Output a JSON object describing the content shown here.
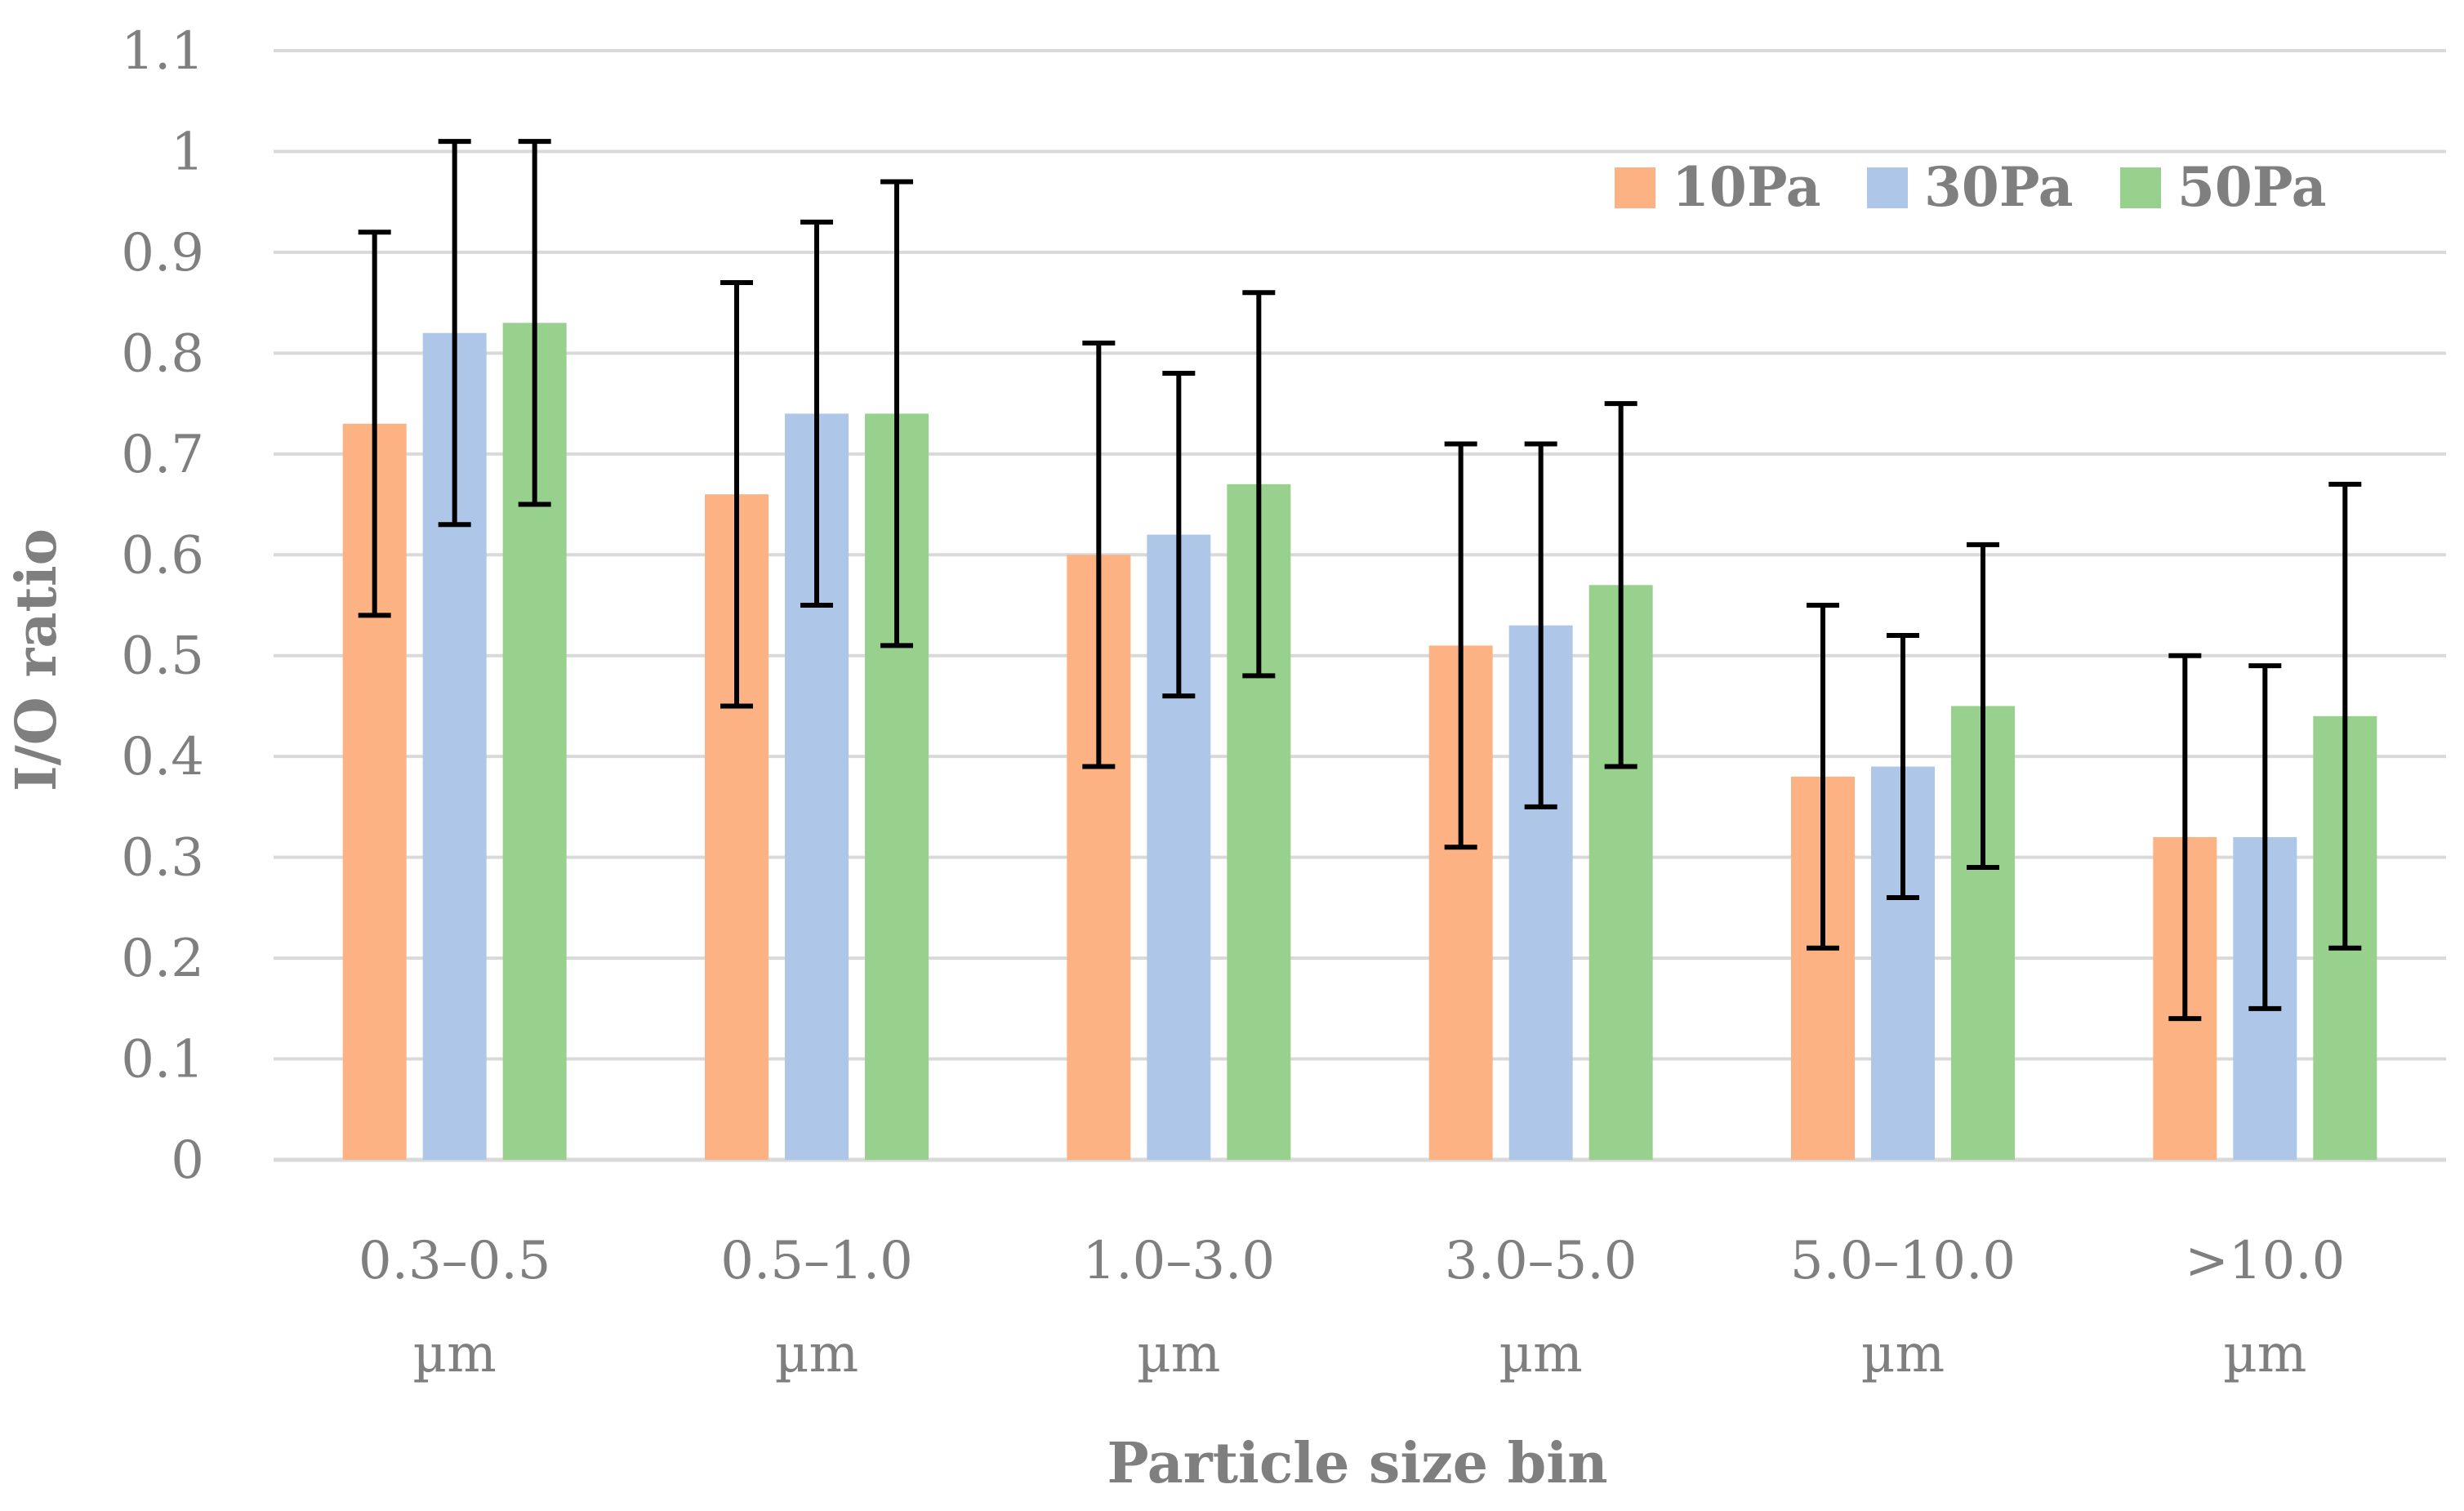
{
  "chart_data": {
    "type": "bar",
    "title": "",
    "xlabel": "Particle size bin",
    "ylabel": "I/O ratio",
    "ylim": [
      0,
      1.1
    ],
    "ytick_step": 0.1,
    "yticks": [
      "0",
      "0.1",
      "0.2",
      "0.3",
      "0.4",
      "0.5",
      "0.6",
      "0.7",
      "0.8",
      "0.9",
      "1",
      "1.1"
    ],
    "grid": true,
    "legend_position": "top-right",
    "categories": [
      [
        "0.3–0.5",
        "µm"
      ],
      [
        "0.5–1.0",
        "µm"
      ],
      [
        "1.0–3.0",
        "µm"
      ],
      [
        "3.0–5.0",
        "µm"
      ],
      [
        "5.0–10.0",
        "µm"
      ],
      [
        ">10.0",
        "µm"
      ]
    ],
    "series": [
      {
        "name": "10Pa",
        "color": "#fdb283",
        "values": [
          0.73,
          0.66,
          0.6,
          0.51,
          0.38,
          0.32
        ],
        "err_low": [
          0.54,
          0.45,
          0.39,
          0.31,
          0.21,
          0.14
        ],
        "err_high": [
          0.92,
          0.87,
          0.81,
          0.71,
          0.55,
          0.5
        ]
      },
      {
        "name": "30Pa",
        "color": "#aec7e8",
        "values": [
          0.82,
          0.74,
          0.62,
          0.53,
          0.39,
          0.32
        ],
        "err_low": [
          0.63,
          0.55,
          0.46,
          0.35,
          0.26,
          0.15
        ],
        "err_high": [
          1.01,
          0.93,
          0.78,
          0.71,
          0.52,
          0.49
        ]
      },
      {
        "name": "50Pa",
        "color": "#98d18d",
        "values": [
          0.83,
          0.74,
          0.67,
          0.57,
          0.45,
          0.44
        ],
        "err_low": [
          0.65,
          0.51,
          0.48,
          0.39,
          0.29,
          0.21
        ],
        "err_high": [
          1.01,
          0.97,
          0.86,
          0.75,
          0.61,
          0.67
        ]
      }
    ],
    "colors": {
      "grid": "#d9d9d9",
      "axis": "#d9d9d9",
      "text": "#7f7f7f",
      "error_bar": "#000000"
    }
  }
}
